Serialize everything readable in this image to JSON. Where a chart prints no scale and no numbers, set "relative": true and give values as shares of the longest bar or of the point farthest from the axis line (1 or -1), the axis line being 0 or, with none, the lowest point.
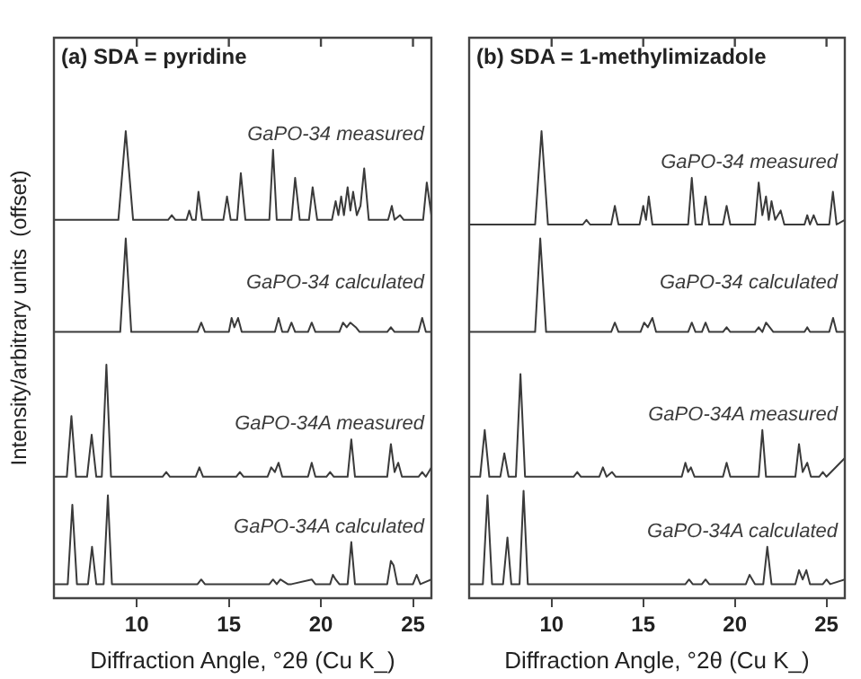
{
  "chart_data": [
    {
      "type": "line",
      "title": "(a) SDA = pyridine",
      "xlabel": "Diffraction Angle, °2θ (Cu K_)",
      "ylabel": "Intensity/arbitrary units  (offset)",
      "relative": true,
      "xlim": [
        5.5,
        26
      ],
      "xticks": [
        10,
        15,
        20,
        25
      ],
      "series": [
        {
          "name": "GaPO-34 measured",
          "color": "#3a3a3a",
          "x": [
            5.5,
            9.0,
            9.4,
            9.8,
            11.7,
            11.9,
            12.1,
            12.7,
            12.85,
            13.0,
            13.2,
            13.35,
            13.55,
            14.7,
            14.9,
            15.1,
            15.45,
            15.65,
            15.9,
            17.2,
            17.4,
            17.6,
            18.4,
            18.6,
            18.85,
            19.35,
            19.55,
            19.8,
            20.6,
            20.8,
            20.95,
            21.1,
            21.25,
            21.45,
            21.6,
            21.75,
            21.95,
            22.15,
            22.35,
            22.6,
            23.65,
            23.85,
            24.0,
            24.3,
            24.5,
            25.55,
            25.75,
            26.0
          ],
          "values": [
            0.81,
            0.81,
            1.0,
            0.81,
            0.81,
            0.82,
            0.81,
            0.81,
            0.83,
            0.81,
            0.81,
            0.87,
            0.81,
            0.81,
            0.86,
            0.81,
            0.81,
            0.91,
            0.81,
            0.81,
            0.96,
            0.81,
            0.81,
            0.9,
            0.81,
            0.81,
            0.88,
            0.81,
            0.81,
            0.85,
            0.82,
            0.86,
            0.82,
            0.88,
            0.83,
            0.87,
            0.82,
            0.84,
            0.92,
            0.81,
            0.81,
            0.84,
            0.81,
            0.82,
            0.81,
            0.81,
            0.89,
            0.82
          ]
        },
        {
          "name": "GaPO-34 calculated",
          "color": "#3a3a3a",
          "x": [
            5.5,
            9.1,
            9.4,
            9.7,
            13.3,
            13.5,
            13.7,
            15.0,
            15.15,
            15.3,
            15.5,
            15.7,
            17.5,
            17.7,
            17.9,
            18.2,
            18.4,
            18.6,
            19.3,
            19.5,
            19.7,
            21.0,
            21.2,
            21.4,
            21.6,
            21.9,
            22.1,
            23.6,
            23.8,
            24.0,
            25.3,
            25.5,
            25.7,
            26.0
          ],
          "values": [
            0.57,
            0.57,
            0.77,
            0.57,
            0.57,
            0.59,
            0.57,
            0.57,
            0.6,
            0.58,
            0.6,
            0.57,
            0.57,
            0.6,
            0.57,
            0.57,
            0.59,
            0.57,
            0.57,
            0.59,
            0.57,
            0.57,
            0.59,
            0.58,
            0.59,
            0.58,
            0.57,
            0.57,
            0.58,
            0.57,
            0.57,
            0.6,
            0.57,
            0.57
          ]
        },
        {
          "name": "GaPO-34A measured",
          "color": "#3a3a3a",
          "x": [
            5.5,
            6.2,
            6.45,
            6.7,
            7.3,
            7.55,
            7.8,
            8.1,
            8.35,
            8.6,
            11.4,
            11.6,
            11.8,
            13.2,
            13.4,
            13.6,
            15.4,
            15.6,
            15.8,
            17.1,
            17.3,
            17.5,
            17.7,
            17.9,
            19.3,
            19.5,
            19.7,
            20.3,
            20.5,
            20.7,
            21.45,
            21.65,
            21.85,
            23.6,
            23.8,
            24.0,
            24.2,
            24.4,
            25.3,
            25.5,
            25.7,
            26.0
          ],
          "values": [
            0.26,
            0.26,
            0.39,
            0.26,
            0.26,
            0.35,
            0.26,
            0.26,
            0.5,
            0.26,
            0.26,
            0.27,
            0.26,
            0.26,
            0.28,
            0.26,
            0.26,
            0.27,
            0.26,
            0.26,
            0.28,
            0.27,
            0.29,
            0.26,
            0.26,
            0.29,
            0.26,
            0.26,
            0.27,
            0.26,
            0.26,
            0.34,
            0.26,
            0.26,
            0.33,
            0.27,
            0.29,
            0.26,
            0.26,
            0.27,
            0.26,
            0.28
          ]
        },
        {
          "name": "GaPO-34A calculated",
          "color": "#3a3a3a",
          "x": [
            5.5,
            6.25,
            6.5,
            6.75,
            7.35,
            7.57,
            7.8,
            8.2,
            8.43,
            8.65,
            13.3,
            13.5,
            13.7,
            17.2,
            17.4,
            17.6,
            17.8,
            18.2,
            18.4,
            19.5,
            19.7,
            20.5,
            20.65,
            20.8,
            21.0,
            21.45,
            21.65,
            21.85,
            23.6,
            23.8,
            23.95,
            24.15,
            25.0,
            25.2,
            25.4,
            26.0
          ],
          "values": [
            0.03,
            0.03,
            0.2,
            0.03,
            0.03,
            0.11,
            0.03,
            0.03,
            0.22,
            0.03,
            0.03,
            0.04,
            0.03,
            0.03,
            0.04,
            0.03,
            0.04,
            0.03,
            0.03,
            0.04,
            0.03,
            0.03,
            0.05,
            0.04,
            0.03,
            0.03,
            0.12,
            0.03,
            0.03,
            0.08,
            0.07,
            0.03,
            0.03,
            0.05,
            0.03,
            0.04
          ]
        }
      ]
    },
    {
      "type": "line",
      "title": "(b) SDA = 1-methylimizadole",
      "xlabel": "Diffraction Angle, °2θ (Cu K_)",
      "relative": true,
      "xlim": [
        5.5,
        26
      ],
      "xticks": [
        10,
        15,
        20,
        25
      ],
      "series": [
        {
          "name": "GaPO-34 measured",
          "color": "#3a3a3a",
          "x": [
            5.5,
            9.1,
            9.45,
            9.8,
            11.7,
            11.9,
            12.1,
            13.25,
            13.45,
            13.65,
            14.8,
            15.0,
            15.15,
            15.3,
            15.5,
            17.45,
            17.65,
            17.85,
            18.2,
            18.4,
            18.6,
            19.35,
            19.55,
            19.75,
            21.1,
            21.3,
            21.5,
            21.7,
            21.85,
            22.0,
            22.2,
            22.5,
            22.7,
            23.8,
            23.95,
            24.1,
            24.3,
            24.5,
            25.15,
            25.35,
            25.55,
            26.0
          ],
          "values": [
            0.8,
            0.8,
            1.0,
            0.8,
            0.8,
            0.81,
            0.8,
            0.8,
            0.84,
            0.8,
            0.8,
            0.84,
            0.81,
            0.86,
            0.8,
            0.8,
            0.9,
            0.8,
            0.8,
            0.86,
            0.8,
            0.8,
            0.84,
            0.8,
            0.8,
            0.89,
            0.82,
            0.86,
            0.81,
            0.85,
            0.81,
            0.83,
            0.8,
            0.8,
            0.82,
            0.8,
            0.82,
            0.8,
            0.8,
            0.87,
            0.8,
            0.81
          ]
        },
        {
          "name": "GaPO-34 calculated",
          "color": "#3a3a3a",
          "x": [
            5.5,
            9.1,
            9.38,
            9.7,
            13.25,
            13.45,
            13.65,
            14.85,
            15.05,
            15.25,
            15.5,
            15.7,
            17.45,
            17.65,
            17.85,
            18.2,
            18.4,
            18.6,
            19.35,
            19.55,
            19.75,
            21.1,
            21.3,
            21.5,
            21.7,
            21.9,
            22.1,
            23.8,
            23.95,
            24.1,
            25.15,
            25.36,
            25.55,
            26.0
          ],
          "values": [
            0.57,
            0.57,
            0.77,
            0.57,
            0.57,
            0.59,
            0.57,
            0.57,
            0.59,
            0.58,
            0.6,
            0.57,
            0.57,
            0.59,
            0.57,
            0.57,
            0.59,
            0.57,
            0.57,
            0.58,
            0.57,
            0.57,
            0.58,
            0.57,
            0.59,
            0.58,
            0.57,
            0.57,
            0.58,
            0.57,
            0.57,
            0.6,
            0.57,
            0.57
          ]
        },
        {
          "name": "GaPO-34A measured",
          "color": "#3a3a3a",
          "x": [
            5.5,
            6.1,
            6.35,
            6.6,
            7.2,
            7.42,
            7.65,
            8.05,
            8.3,
            8.55,
            11.2,
            11.4,
            11.6,
            12.6,
            12.8,
            13.0,
            13.3,
            13.5,
            17.1,
            17.3,
            17.45,
            17.6,
            17.8,
            19.35,
            19.55,
            19.75,
            21.3,
            21.5,
            21.7,
            23.3,
            23.5,
            23.7,
            23.95,
            24.15,
            24.6,
            24.8,
            25.0,
            26.0
          ],
          "values": [
            0.26,
            0.26,
            0.36,
            0.26,
            0.26,
            0.31,
            0.26,
            0.26,
            0.48,
            0.26,
            0.26,
            0.27,
            0.26,
            0.26,
            0.28,
            0.26,
            0.27,
            0.26,
            0.26,
            0.29,
            0.27,
            0.28,
            0.26,
            0.26,
            0.29,
            0.26,
            0.26,
            0.36,
            0.26,
            0.26,
            0.33,
            0.27,
            0.29,
            0.26,
            0.26,
            0.27,
            0.26,
            0.3
          ]
        },
        {
          "name": "GaPO-34A calculated",
          "color": "#3a3a3a",
          "x": [
            5.5,
            6.25,
            6.5,
            6.75,
            7.35,
            7.59,
            7.8,
            8.25,
            8.47,
            8.7,
            17.3,
            17.5,
            17.7,
            18.2,
            18.4,
            18.6,
            20.6,
            20.8,
            20.95,
            21.1,
            21.55,
            21.77,
            22.0,
            23.3,
            23.5,
            23.7,
            23.9,
            24.1,
            24.8,
            25.0,
            25.2,
            26.0
          ],
          "values": [
            0.03,
            0.03,
            0.22,
            0.03,
            0.03,
            0.13,
            0.03,
            0.03,
            0.23,
            0.03,
            0.03,
            0.04,
            0.03,
            0.03,
            0.04,
            0.03,
            0.03,
            0.05,
            0.04,
            0.03,
            0.03,
            0.11,
            0.03,
            0.03,
            0.06,
            0.04,
            0.06,
            0.03,
            0.03,
            0.04,
            0.03,
            0.04
          ]
        }
      ]
    }
  ]
}
